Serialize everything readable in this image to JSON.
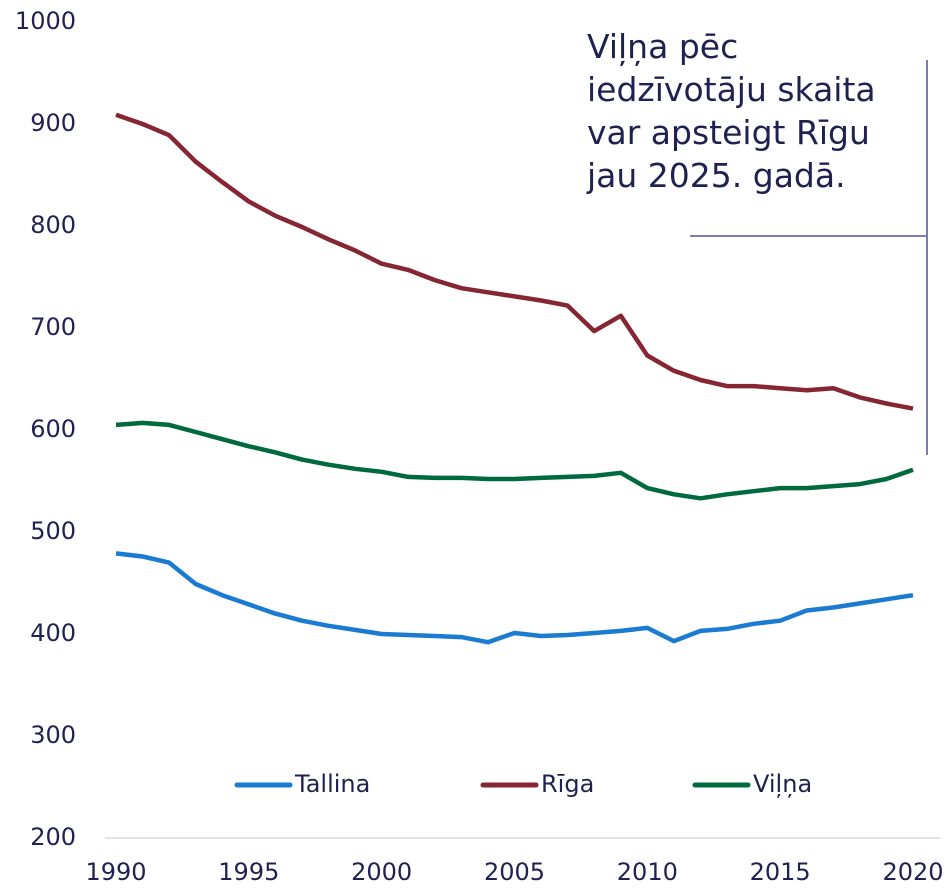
{
  "chart_data": {
    "type": "line",
    "annotation": [
      "Viļņa pēc",
      "iedzīvotāju skaita",
      "var apsteigt Rīgu",
      "jau 2025. gadā."
    ],
    "x": [
      1990,
      1991,
      1992,
      1993,
      1994,
      1995,
      1996,
      1997,
      1998,
      1999,
      2000,
      2001,
      2002,
      2003,
      2004,
      2005,
      2006,
      2007,
      2008,
      2009,
      2010,
      2011,
      2012,
      2013,
      2014,
      2015,
      2016,
      2017,
      2018,
      2019,
      2020
    ],
    "series": [
      {
        "name": "Tallina",
        "color": "#1a7bd1",
        "values": [
          479,
          476,
          470,
          449,
          438,
          429,
          420,
          413,
          408,
          404,
          400,
          399,
          398,
          397,
          392,
          401,
          398,
          399,
          401,
          403,
          406,
          393,
          403,
          405,
          410,
          413,
          423,
          426,
          430,
          434,
          438
        ]
      },
      {
        "name": "Rīga",
        "color": "#862633",
        "values": [
          909,
          900,
          889,
          863,
          843,
          824,
          810,
          799,
          787,
          776,
          763,
          757,
          747,
          739,
          735,
          731,
          727,
          722,
          697,
          712,
          673,
          658,
          649,
          643,
          643,
          641,
          639,
          641,
          632,
          626,
          621
        ]
      },
      {
        "name": "Viļņa",
        "color": "#00693e",
        "values": [
          605,
          607,
          605,
          598,
          591,
          584,
          578,
          571,
          566,
          562,
          559,
          554,
          553,
          553,
          552,
          552,
          553,
          554,
          555,
          558,
          543,
          537,
          533,
          537,
          540,
          543,
          543,
          545,
          547,
          552,
          561
        ]
      }
    ],
    "xlim": [
      1990,
      2020
    ],
    "xticks": [
      1990,
      1995,
      2000,
      2005,
      2010,
      2015,
      2020
    ],
    "ylim": [
      200,
      1000
    ],
    "yticks": [
      200,
      300,
      400,
      500,
      600,
      700,
      800,
      900,
      1000
    ],
    "grid": false,
    "legend": "bottom"
  }
}
